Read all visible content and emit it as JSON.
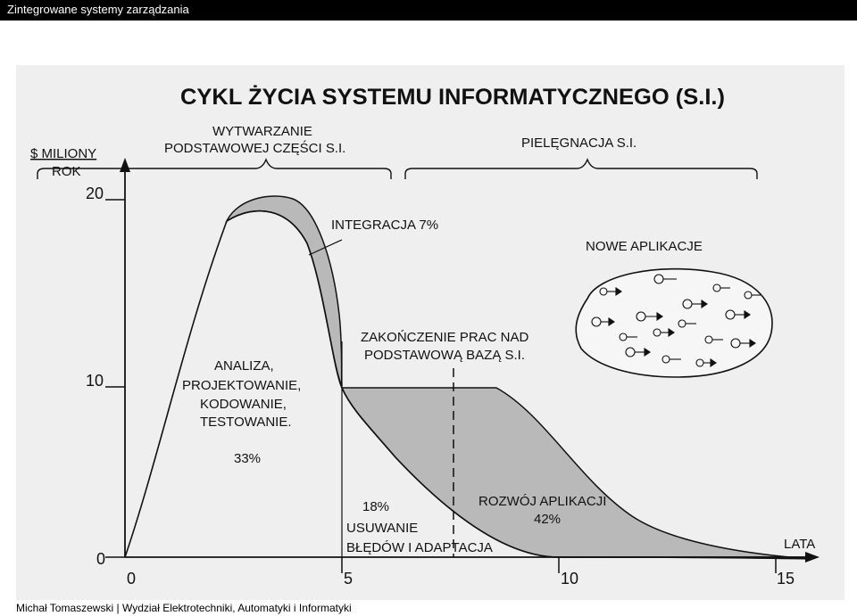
{
  "header": {
    "title": "Zintegrowane systemy zarządzania"
  },
  "diagram": {
    "title": "CYKL ŻYCIA SYSTEMU INFORMATYCZNEGO (S.I.)",
    "phase_production_line1": "WYTWARZANIE",
    "phase_production_line2": "PODSTAWOWEJ CZĘŚCI S.I.",
    "phase_maintenance": "PIELĘGNACJA S.I.",
    "y_axis_unit_line1": "$ MILIONY",
    "y_axis_unit_line2": "ROK",
    "y_ticks": [
      "20",
      "10",
      "0"
    ],
    "x_ticks": [
      "0",
      "5",
      "10",
      "15"
    ],
    "x_axis_label": "LATA",
    "integration_label": "INTEGRACJA 7%",
    "new_apps_label": "NOWE APLIKACJE",
    "completion_line1": "ZAKOŃCZENIE PRAC NAD",
    "completion_line2": "PODSTAWOWĄ BAZĄ S.I.",
    "analysis_lines": [
      "ANALIZA,",
      "PROJEKTOWANIE,",
      "KODOWANIE,",
      "TESTOWANIE."
    ],
    "analysis_percent": "33%",
    "fixes_percent": "18%",
    "fixes_line1": "USUWANIE",
    "fixes_line2": "BŁĘDÓW I ADAPTACJA",
    "development_label": "ROZWÓJ APLIKACJI",
    "development_percent": "42%"
  },
  "colors": {
    "shade": "#b9b9b9",
    "paper": "#efefef",
    "ink": "#111111"
  },
  "footer": {
    "author": "Michał Tomaszewski",
    "separator": "|",
    "affiliation": "Wydział Elektrotechniki, Automatyki i Informatyki"
  }
}
